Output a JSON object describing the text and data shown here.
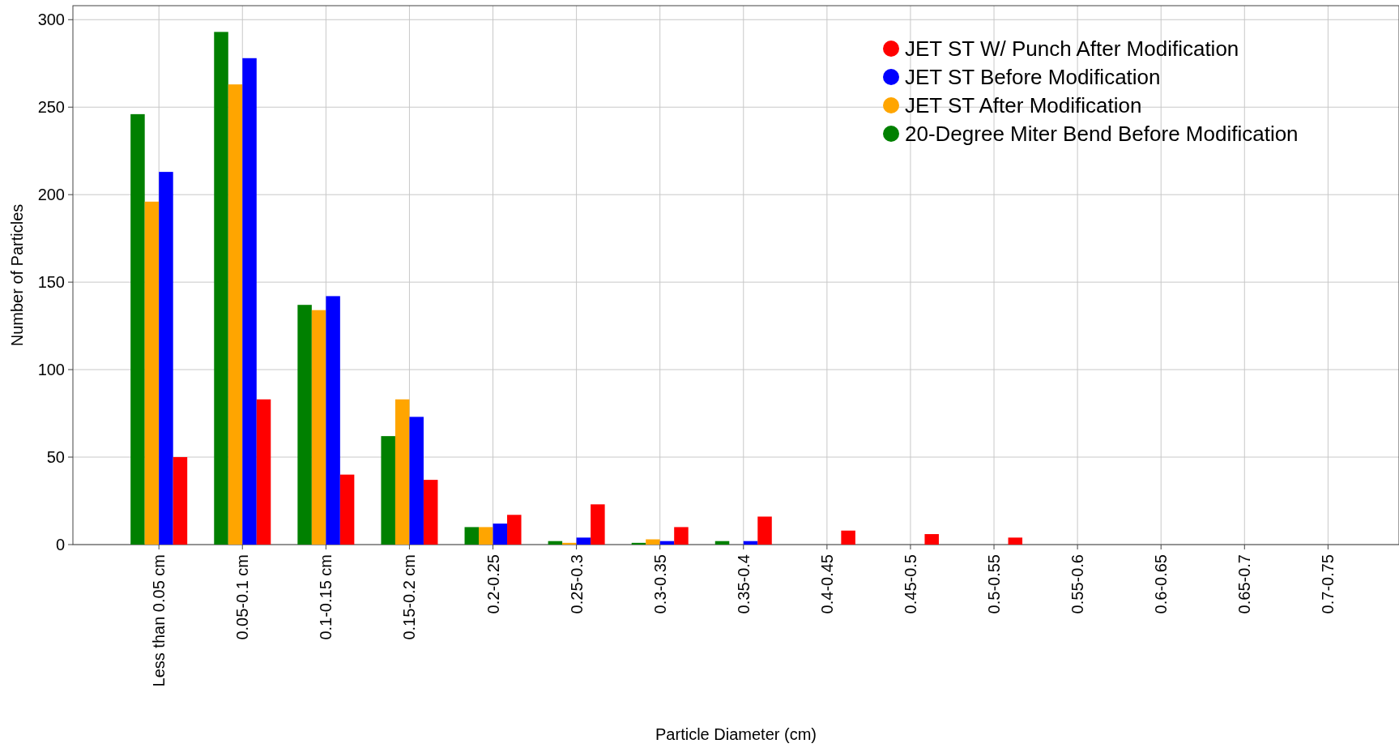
{
  "chart_data": {
    "type": "bar",
    "xlabel": "Particle Diameter (cm)",
    "ylabel": "Number of Particles",
    "categories": [
      "Less than 0.05 cm",
      "0.05-0.1 cm",
      "0.1-0.15 cm",
      "0.15-0.2 cm",
      "0.2-0.25",
      "0.25-0.3",
      "0.3-0.35",
      "0.35-0.4",
      "0.4-0.45",
      "0.45-0.5",
      "0.5-0.55",
      "0.55-0.6",
      "0.6-0.65",
      "0.65-0.7",
      "0.7-0.75"
    ],
    "series": [
      {
        "name": "20-Degree Miter Bend Before Modification",
        "color": "#008000",
        "values": [
          246,
          293,
          137,
          62,
          10,
          2,
          1,
          2,
          0,
          0,
          0,
          0,
          0,
          0,
          0
        ]
      },
      {
        "name": "JET ST After Modification",
        "color": "#ffa500",
        "values": [
          196,
          263,
          134,
          83,
          10,
          1,
          3,
          0,
          0,
          0,
          0,
          0,
          0,
          0,
          0
        ]
      },
      {
        "name": "JET ST Before Modification",
        "color": "#0000ff",
        "values": [
          213,
          278,
          142,
          73,
          12,
          4,
          2,
          2,
          0,
          0,
          0,
          0,
          0,
          0,
          0
        ]
      },
      {
        "name": "JET ST W/ Punch After Modification",
        "color": "#ff0000",
        "values": [
          50,
          83,
          40,
          37,
          17,
          23,
          10,
          16,
          8,
          6,
          4,
          0,
          0,
          0,
          0
        ]
      }
    ],
    "ylim": [
      0,
      308
    ],
    "yticks": [
      0,
      50,
      100,
      150,
      200,
      250,
      300
    ],
    "grid": true,
    "legend": "top right"
  }
}
